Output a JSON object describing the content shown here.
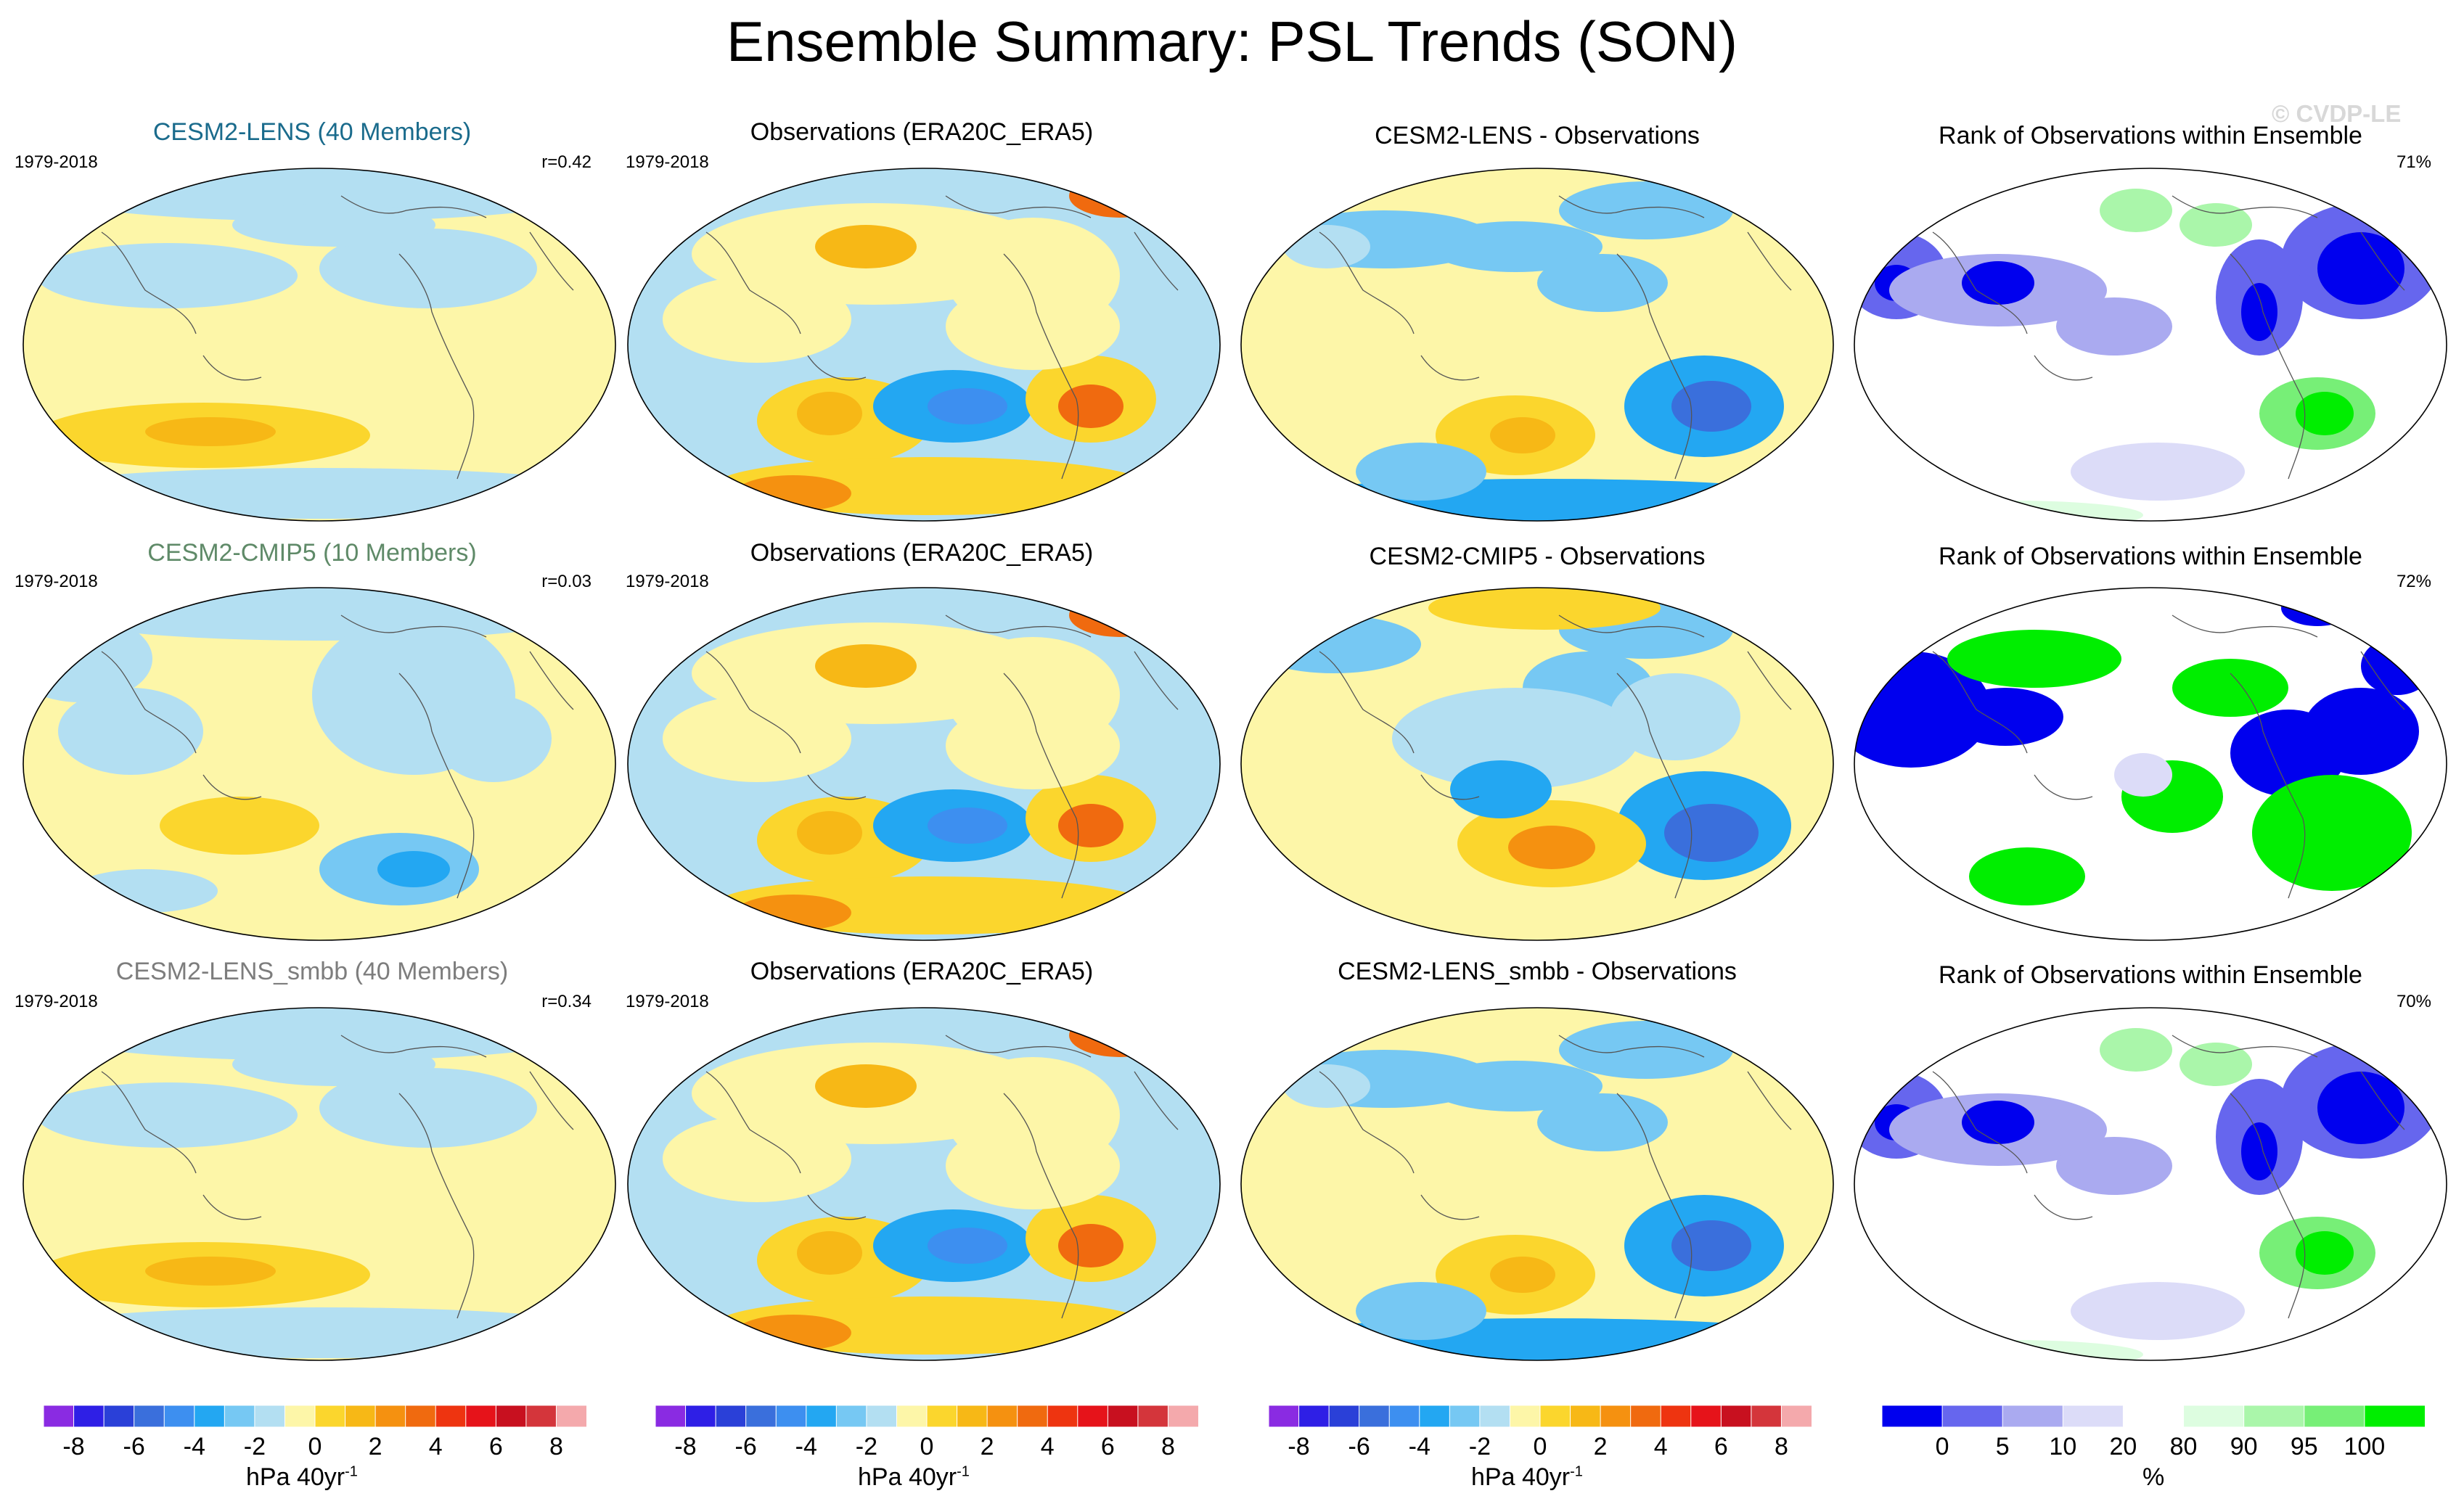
{
  "title": "Ensemble Summary: PSL Trends (SON)",
  "watermark": "© CVDP-LE",
  "rows": [
    {
      "model": {
        "title": "CESM2-LENS (40 Members)",
        "title_color": "#1a6b8c",
        "period": "1979-2018",
        "corr": "r=0.42"
      },
      "obs": {
        "title": "Observations (ERA20C_ERA5)",
        "period": "1979-2018"
      },
      "diff": {
        "title": "CESM2-LENS - Observations"
      },
      "rank": {
        "title": "Rank of Observations within Ensemble",
        "pct": "71%"
      }
    },
    {
      "model": {
        "title": "CESM2-CMIP5 (10 Members)",
        "title_color": "#5f8a68",
        "period": "1979-2018",
        "corr": "r=0.03"
      },
      "obs": {
        "title": "Observations (ERA20C_ERA5)",
        "period": "1979-2018"
      },
      "diff": {
        "title": "CESM2-CMIP5 - Observations"
      },
      "rank": {
        "title": "Rank of Observations within Ensemble",
        "pct": "72%"
      }
    },
    {
      "model": {
        "title": "CESM2-LENS_smbb (40 Members)",
        "title_color": "#7d7d7d",
        "period": "1979-2018",
        "corr": "r=0.34"
      },
      "obs": {
        "title": "Observations (ERA20C_ERA5)",
        "period": "1979-2018"
      },
      "diff": {
        "title": "CESM2-LENS_smbb - Observations"
      },
      "rank": {
        "title": "Rank of Observations within Ensemble",
        "pct": "70%"
      }
    }
  ],
  "colorbars": {
    "trend": {
      "unit": "hPa 40yr",
      "unit_exp": "-1",
      "ticks": [
        "-8",
        "-6",
        "-4",
        "-2",
        "0",
        "2",
        "4",
        "6",
        "8"
      ],
      "colors": [
        "#8a2be2",
        "#2e1fe6",
        "#2a40d8",
        "#3a6fdc",
        "#3d8ff0",
        "#23a7f2",
        "#76c8f3",
        "#b3dff2",
        "#fdf6a8",
        "#fbd62d",
        "#f7b816",
        "#f59110",
        "#f06a0f",
        "#ee3410",
        "#e6131a",
        "#c8101f",
        "#d4353b",
        "#f4a9ac"
      ]
    },
    "rank": {
      "unit": "%",
      "ticks": [
        "0",
        "5",
        "10",
        "20",
        "80",
        "90",
        "95",
        "100"
      ],
      "colors": [
        "#0000ee",
        "#6666ee",
        "#aaaaf0",
        "#dcdcf8",
        "#ffffff",
        "#ddfde0",
        "#aaf6aa",
        "#77ef77",
        "#00ee00"
      ]
    }
  }
}
